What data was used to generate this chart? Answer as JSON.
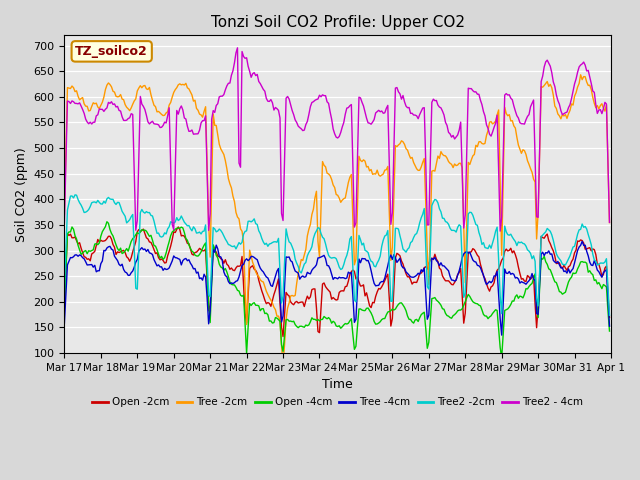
{
  "title": "Tonzi Soil CO2 Profile: Upper CO2",
  "xlabel": "Time",
  "ylabel": "Soil CO2 (ppm)",
  "ylim": [
    100,
    720
  ],
  "yticks": [
    100,
    150,
    200,
    250,
    300,
    350,
    400,
    450,
    500,
    550,
    600,
    650,
    700
  ],
  "bg_color": "#d8d8d8",
  "plot_bg": "#e8e8e8",
  "legend_label": "TZ_soilco2",
  "series_labels": [
    "Open -2cm",
    "Tree -2cm",
    "Open -4cm",
    "Tree -4cm",
    "Tree2 -2cm",
    "Tree2 - 4cm"
  ],
  "series_colors": [
    "#cc0000",
    "#ff9900",
    "#00cc00",
    "#0000cc",
    "#00cccc",
    "#cc00cc"
  ],
  "n_points": 360,
  "xtick_labels": [
    "Mar 17",
    "Mar 18",
    "Mar 19",
    "Mar 20",
    "Mar 21",
    "Mar 22",
    "Mar 23",
    "Mar 24",
    "Mar 25",
    "Mar 26",
    "Mar 27",
    "Mar 28",
    "Mar 29",
    "Mar 30",
    "Mar 31",
    "Apr 1"
  ],
  "xtick_positions": [
    0,
    24,
    48,
    72,
    96,
    120,
    144,
    168,
    192,
    216,
    240,
    264,
    288,
    312,
    336,
    360
  ]
}
